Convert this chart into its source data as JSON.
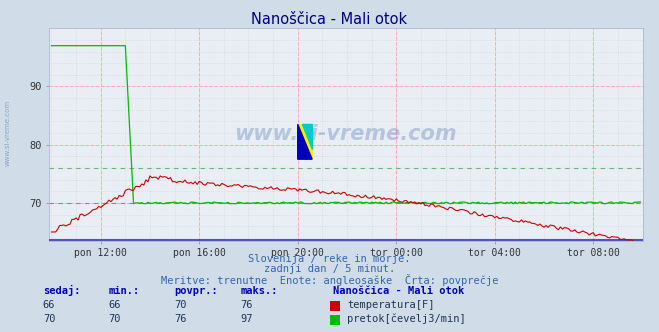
{
  "title": "Nanoščica - Mali otok",
  "title_color": "#000080",
  "bg_color": "#d0dce8",
  "plot_bg_color": "#e8eef4",
  "ylim": [
    63.5,
    100
  ],
  "yticks": [
    70,
    80,
    90
  ],
  "n_points": 288,
  "x_tick_positions": [
    24,
    72,
    120,
    168,
    216,
    264
  ],
  "x_tick_labels": [
    "pon 12:00",
    "pon 16:00",
    "pon 20:00",
    "tor 00:00",
    "tor 04:00",
    "tor 08:00"
  ],
  "temp_color": "#cc0000",
  "flow_color": "#00bb00",
  "avg_temp_color": "#dd6666",
  "avg_flow_color": "#66bb66",
  "blue_line_color": "#3333bb",
  "watermark_color": "#4466aa",
  "temp_min": 66,
  "temp_max": 76,
  "temp_avg": 70,
  "temp_current": 66,
  "flow_min": 70,
  "flow_max": 97,
  "flow_avg": 76,
  "flow_current": 70,
  "subtitle1": "Slovenija / reke in morje.",
  "subtitle2": "zadnji dan / 5 minut.",
  "subtitle3": "Meritve: trenutne  Enote: angleosaške  Črta: povprečje",
  "legend_title": "Nanoščica - Mali otok",
  "legend_temp": "temperatura[F]",
  "legend_flow": "pretok[čevelj3/min]"
}
